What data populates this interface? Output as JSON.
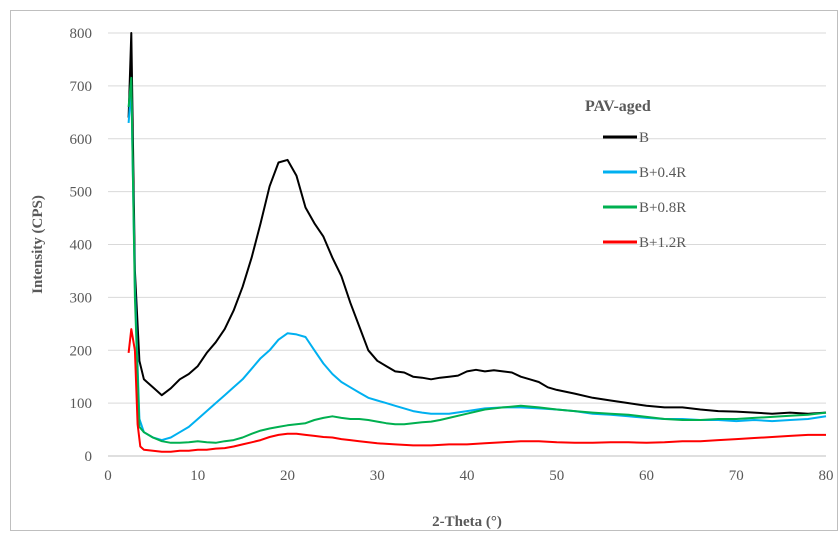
{
  "chart_data": {
    "type": "line",
    "title": "",
    "xlabel": "2-Theta (°)",
    "ylabel": "Intensity (CPS)",
    "xlim": [
      0,
      80
    ],
    "ylim": [
      0,
      800
    ],
    "x_ticks": [
      "0",
      "10",
      "20",
      "30",
      "40",
      "50",
      "60",
      "70",
      "80"
    ],
    "y_ticks": [
      "0",
      "100",
      "200",
      "300",
      "400",
      "500",
      "600",
      "700",
      "800"
    ],
    "grid": "horizontal",
    "legend": {
      "title": "PAV-aged",
      "placement": "right"
    },
    "series": [
      {
        "name": "B",
        "color": "#000000",
        "points": [
          [
            2.3,
            640
          ],
          [
            2.6,
            800
          ],
          [
            3.0,
            350
          ],
          [
            3.5,
            180
          ],
          [
            4,
            145
          ],
          [
            5,
            130
          ],
          [
            6,
            115
          ],
          [
            7,
            128
          ],
          [
            8,
            145
          ],
          [
            9,
            155
          ],
          [
            10,
            170
          ],
          [
            11,
            195
          ],
          [
            12,
            215
          ],
          [
            13,
            240
          ],
          [
            14,
            275
          ],
          [
            15,
            320
          ],
          [
            16,
            375
          ],
          [
            17,
            440
          ],
          [
            18,
            510
          ],
          [
            19,
            555
          ],
          [
            20,
            560
          ],
          [
            21,
            530
          ],
          [
            22,
            470
          ],
          [
            23,
            440
          ],
          [
            24,
            415
          ],
          [
            25,
            375
          ],
          [
            26,
            340
          ],
          [
            27,
            290
          ],
          [
            28,
            245
          ],
          [
            29,
            200
          ],
          [
            30,
            180
          ],
          [
            31,
            170
          ],
          [
            32,
            160
          ],
          [
            33,
            158
          ],
          [
            34,
            150
          ],
          [
            35,
            148
          ],
          [
            36,
            145
          ],
          [
            37,
            148
          ],
          [
            38,
            150
          ],
          [
            39,
            152
          ],
          [
            40,
            160
          ],
          [
            41,
            163
          ],
          [
            42,
            160
          ],
          [
            43,
            162
          ],
          [
            44,
            160
          ],
          [
            45,
            158
          ],
          [
            46,
            150
          ],
          [
            47,
            145
          ],
          [
            48,
            140
          ],
          [
            49,
            130
          ],
          [
            50,
            125
          ],
          [
            52,
            118
          ],
          [
            54,
            110
          ],
          [
            56,
            105
          ],
          [
            58,
            100
          ],
          [
            60,
            95
          ],
          [
            62,
            92
          ],
          [
            64,
            92
          ],
          [
            66,
            88
          ],
          [
            68,
            85
          ],
          [
            70,
            84
          ],
          [
            72,
            82
          ],
          [
            74,
            80
          ],
          [
            76,
            82
          ],
          [
            78,
            80
          ],
          [
            80,
            82
          ]
        ]
      },
      {
        "name": "B+0.4R",
        "color": "#00b0f0",
        "points": [
          [
            2.3,
            630
          ],
          [
            2.6,
            700
          ],
          [
            3.0,
            320
          ],
          [
            3.5,
            70
          ],
          [
            4,
            45
          ],
          [
            5,
            35
          ],
          [
            6,
            30
          ],
          [
            7,
            35
          ],
          [
            8,
            45
          ],
          [
            9,
            55
          ],
          [
            10,
            70
          ],
          [
            11,
            85
          ],
          [
            12,
            100
          ],
          [
            13,
            115
          ],
          [
            14,
            130
          ],
          [
            15,
            145
          ],
          [
            16,
            165
          ],
          [
            17,
            185
          ],
          [
            18,
            200
          ],
          [
            19,
            220
          ],
          [
            20,
            232
          ],
          [
            21,
            230
          ],
          [
            22,
            225
          ],
          [
            23,
            200
          ],
          [
            24,
            175
          ],
          [
            25,
            155
          ],
          [
            26,
            140
          ],
          [
            27,
            130
          ],
          [
            28,
            120
          ],
          [
            29,
            110
          ],
          [
            30,
            105
          ],
          [
            31,
            100
          ],
          [
            32,
            95
          ],
          [
            33,
            90
          ],
          [
            34,
            85
          ],
          [
            35,
            82
          ],
          [
            36,
            80
          ],
          [
            37,
            80
          ],
          [
            38,
            80
          ],
          [
            40,
            85
          ],
          [
            42,
            90
          ],
          [
            44,
            92
          ],
          [
            46,
            92
          ],
          [
            48,
            90
          ],
          [
            50,
            88
          ],
          [
            52,
            85
          ],
          [
            54,
            80
          ],
          [
            56,
            78
          ],
          [
            58,
            75
          ],
          [
            60,
            72
          ],
          [
            62,
            70
          ],
          [
            64,
            70
          ],
          [
            66,
            68
          ],
          [
            68,
            68
          ],
          [
            70,
            66
          ],
          [
            72,
            68
          ],
          [
            74,
            66
          ],
          [
            76,
            68
          ],
          [
            78,
            70
          ],
          [
            80,
            75
          ]
        ]
      },
      {
        "name": "B+0.8R",
        "color": "#00b050",
        "points": [
          [
            2.3,
            660
          ],
          [
            2.6,
            715
          ],
          [
            3.0,
            300
          ],
          [
            3.5,
            55
          ],
          [
            4,
            45
          ],
          [
            5,
            35
          ],
          [
            6,
            28
          ],
          [
            7,
            25
          ],
          [
            8,
            25
          ],
          [
            9,
            26
          ],
          [
            10,
            28
          ],
          [
            11,
            26
          ],
          [
            12,
            25
          ],
          [
            13,
            28
          ],
          [
            14,
            30
          ],
          [
            15,
            35
          ],
          [
            16,
            42
          ],
          [
            17,
            48
          ],
          [
            18,
            52
          ],
          [
            19,
            55
          ],
          [
            20,
            58
          ],
          [
            21,
            60
          ],
          [
            22,
            62
          ],
          [
            23,
            68
          ],
          [
            24,
            72
          ],
          [
            25,
            75
          ],
          [
            26,
            72
          ],
          [
            27,
            70
          ],
          [
            28,
            70
          ],
          [
            29,
            68
          ],
          [
            30,
            65
          ],
          [
            31,
            62
          ],
          [
            32,
            60
          ],
          [
            33,
            60
          ],
          [
            34,
            62
          ],
          [
            35,
            64
          ],
          [
            36,
            65
          ],
          [
            37,
            68
          ],
          [
            38,
            72
          ],
          [
            40,
            80
          ],
          [
            42,
            88
          ],
          [
            44,
            92
          ],
          [
            46,
            95
          ],
          [
            48,
            92
          ],
          [
            50,
            88
          ],
          [
            52,
            85
          ],
          [
            54,
            82
          ],
          [
            56,
            80
          ],
          [
            58,
            78
          ],
          [
            60,
            74
          ],
          [
            62,
            70
          ],
          [
            64,
            68
          ],
          [
            66,
            68
          ],
          [
            68,
            70
          ],
          [
            70,
            70
          ],
          [
            72,
            72
          ],
          [
            74,
            74
          ],
          [
            76,
            76
          ],
          [
            78,
            78
          ],
          [
            80,
            82
          ]
        ]
      },
      {
        "name": "B+1.2R",
        "color": "#ff0000",
        "points": [
          [
            2.3,
            195
          ],
          [
            2.6,
            240
          ],
          [
            3.0,
            200
          ],
          [
            3.3,
            60
          ],
          [
            3.6,
            18
          ],
          [
            4,
            12
          ],
          [
            5,
            10
          ],
          [
            6,
            8
          ],
          [
            7,
            8
          ],
          [
            8,
            10
          ],
          [
            9,
            10
          ],
          [
            10,
            12
          ],
          [
            11,
            12
          ],
          [
            12,
            14
          ],
          [
            13,
            15
          ],
          [
            14,
            18
          ],
          [
            15,
            22
          ],
          [
            16,
            26
          ],
          [
            17,
            30
          ],
          [
            18,
            36
          ],
          [
            19,
            40
          ],
          [
            20,
            42
          ],
          [
            21,
            42
          ],
          [
            22,
            40
          ],
          [
            23,
            38
          ],
          [
            24,
            36
          ],
          [
            25,
            35
          ],
          [
            26,
            32
          ],
          [
            27,
            30
          ],
          [
            28,
            28
          ],
          [
            29,
            26
          ],
          [
            30,
            24
          ],
          [
            32,
            22
          ],
          [
            34,
            20
          ],
          [
            36,
            20
          ],
          [
            38,
            22
          ],
          [
            40,
            22
          ],
          [
            42,
            24
          ],
          [
            44,
            26
          ],
          [
            46,
            28
          ],
          [
            48,
            28
          ],
          [
            50,
            26
          ],
          [
            52,
            25
          ],
          [
            54,
            25
          ],
          [
            56,
            26
          ],
          [
            58,
            26
          ],
          [
            60,
            25
          ],
          [
            62,
            26
          ],
          [
            64,
            28
          ],
          [
            66,
            28
          ],
          [
            68,
            30
          ],
          [
            70,
            32
          ],
          [
            72,
            34
          ],
          [
            74,
            36
          ],
          [
            76,
            38
          ],
          [
            78,
            40
          ],
          [
            80,
            40
          ]
        ]
      }
    ]
  }
}
